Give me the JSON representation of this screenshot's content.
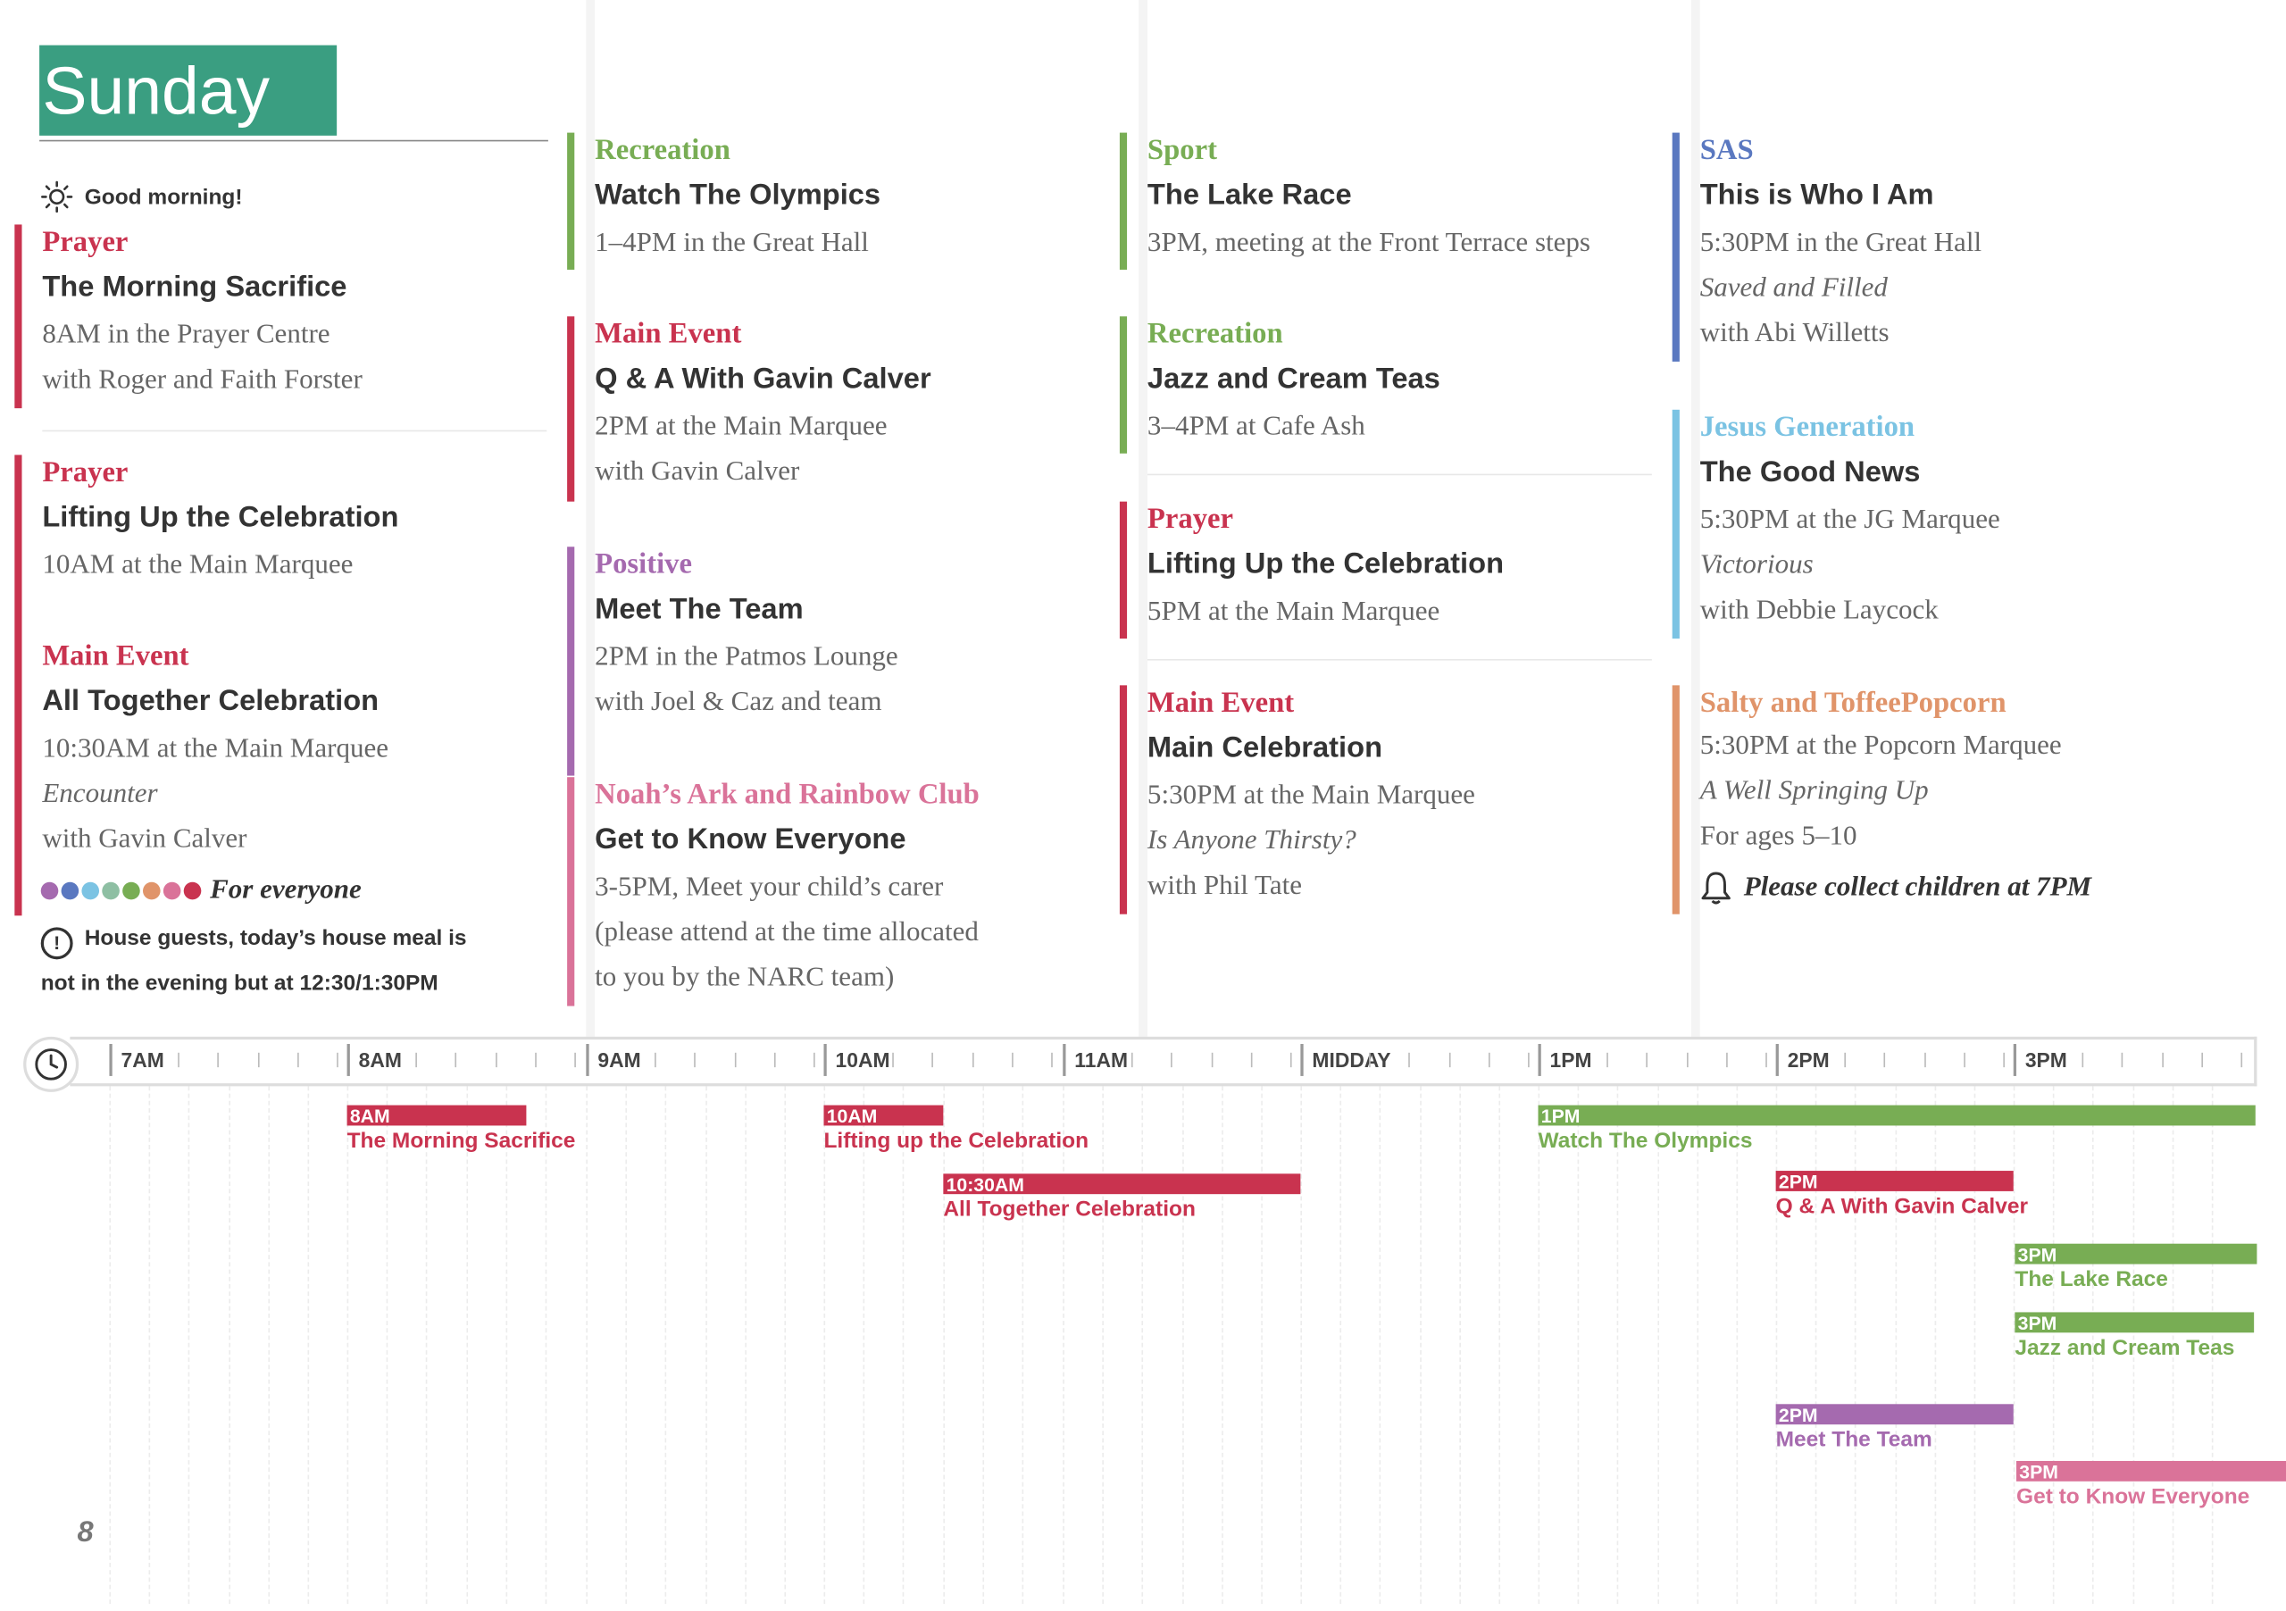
{
  "header": {
    "day": "Sunday",
    "greeting": "Good morning!"
  },
  "page_number": "8",
  "colors": {
    "prayer": "#c9334f",
    "main_event": "#c9334f",
    "recreation": "#78ad54",
    "sport": "#78ad54",
    "positive": "#a56aaf",
    "noahs_ark": "#da7399",
    "sas": "#5a78c0",
    "jesus_generation": "#7bc3e3",
    "salty": "#e0946a",
    "header_bg": "#3a9e81"
  },
  "col1": {
    "e1": {
      "category": "Prayer",
      "title": "The Morning Sacrifice",
      "line1": "8AM in the Prayer Centre",
      "line2": "with Roger and Faith Forster"
    },
    "e2": {
      "category": "Prayer",
      "title": "Lifting Up the Celebration",
      "line1": "10AM at the Main Marquee"
    },
    "e3": {
      "category": "Main Event",
      "title": "All Together Celebration",
      "line1": "10:30AM at the Main Marquee",
      "line2": "Encounter",
      "line3": "with Gavin Calver"
    },
    "for_everyone": "For everyone",
    "dot_colors": [
      "#a56aaf",
      "#5a78c0",
      "#7bc3e3",
      "#8ebfa3",
      "#78ad54",
      "#e0946a",
      "#da7399",
      "#c9334f"
    ],
    "notice_line1": "House guests, today’s house meal is",
    "notice_line2": "not in the evening but at 12:30/1:30PM"
  },
  "col2": {
    "e1": {
      "category": "Recreation",
      "title": "Watch The Olympics",
      "line1": "1–4PM in the Great Hall"
    },
    "e2": {
      "category": "Main Event",
      "title": "Q & A With Gavin Calver",
      "line1": "2PM at the Main Marquee",
      "line2": "with Gavin Calver"
    },
    "e3": {
      "category": "Positive",
      "title": "Meet The Team",
      "line1": "2PM in the Patmos Lounge",
      "line2": "with Joel & Caz and team"
    },
    "e4": {
      "category": "Noah’s Ark and Rainbow Club",
      "title": "Get to Know Everyone",
      "line1": "3-5PM, Meet your child’s carer",
      "line2": "(please attend at the time allocated",
      "line3": "to you by the NARC team)"
    }
  },
  "col3": {
    "e1": {
      "category": "Sport",
      "title": "The Lake Race",
      "line1": "3PM, meeting at the Front Terrace steps"
    },
    "e2": {
      "category": "Recreation",
      "title": "Jazz and Cream Teas",
      "line1": "3–4PM at Cafe Ash"
    },
    "e3": {
      "category": "Prayer",
      "title": "Lifting Up the Celebration",
      "line1": "5PM at the Main Marquee"
    },
    "e4": {
      "category": "Main Event",
      "title": "Main Celebration",
      "line1": "5:30PM at the Main Marquee",
      "line2": "Is Anyone Thirsty?",
      "line3": "with Phil Tate"
    }
  },
  "col4": {
    "e1": {
      "category": "SAS",
      "title": "This is Who I Am",
      "line1": "5:30PM in the Great Hall",
      "line2": "Saved and Filled",
      "line3": "with Abi Willetts"
    },
    "e2": {
      "category": "Jesus Generation",
      "title": "The Good News",
      "line1": "5:30PM at the JG Marquee",
      "line2": "Victorious",
      "line3": "with Debbie Laycock"
    },
    "e3": {
      "category": "Salty and ToffeePopcorn",
      "line1": "5:30PM at the Popcorn Marquee",
      "line2": "A Well Springing Up",
      "line3": "For ages 5–10"
    },
    "collect": "Please collect children at 7PM"
  },
  "timeline": {
    "hours": [
      "7AM",
      "8AM",
      "9AM",
      "10AM",
      "11AM",
      "MIDDAY",
      "1PM",
      "2PM",
      "3PM"
    ],
    "events": [
      {
        "time": "8AM",
        "label": "The Morning Sacrifice",
        "color": "#c9334f"
      },
      {
        "time": "10AM",
        "label": "Lifting up the Celebration",
        "color": "#c9334f"
      },
      {
        "time": "10:30AM",
        "label": "All Together Celebration",
        "color": "#c9334f"
      },
      {
        "time": "1PM",
        "label": "Watch The Olympics",
        "color": "#78ad54"
      },
      {
        "time": "2PM",
        "label": "Q & A With Gavin Calver",
        "color": "#c9334f"
      },
      {
        "time": "3PM",
        "label": "The Lake Race",
        "color": "#78ad54"
      },
      {
        "time": "3PM",
        "label": "Jazz  and Cream Teas",
        "color": "#78ad54"
      },
      {
        "time": "2PM",
        "label": "Meet The Team",
        "color": "#a56aaf"
      },
      {
        "time": "3PM",
        "label": "Get to Know Everyone",
        "color": "#da7399"
      }
    ]
  }
}
